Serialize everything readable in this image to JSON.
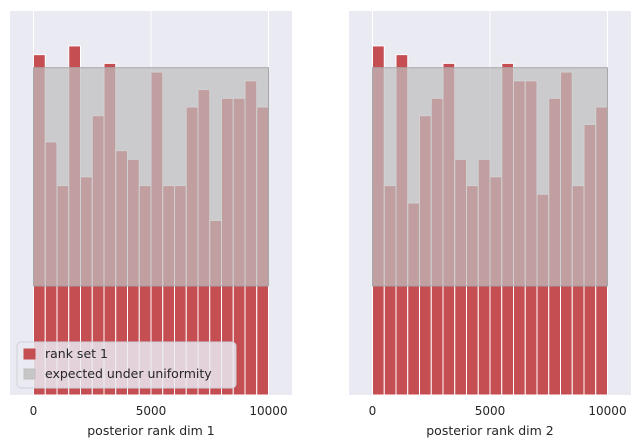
{
  "chart_data": [
    {
      "type": "bar",
      "title": "",
      "xlabel": "posterior rank dim 1",
      "ylabel": "",
      "xlim": [
        -1000,
        11000
      ],
      "ylim": [
        0,
        8.8
      ],
      "xticks": [
        0,
        5000,
        10000
      ],
      "xtick_labels": [
        "0",
        "5000",
        "10000"
      ],
      "bin_width": 500,
      "bin_starts": [
        0,
        500,
        1000,
        1500,
        2000,
        2500,
        3000,
        3500,
        4000,
        4500,
        5000,
        5500,
        6000,
        6500,
        7000,
        7500,
        8000,
        8500,
        9000,
        9500
      ],
      "values": [
        7.8,
        5.8,
        4.8,
        8.0,
        5.0,
        6.4,
        7.6,
        5.6,
        5.4,
        4.8,
        7.4,
        4.8,
        4.8,
        6.6,
        7.0,
        4.0,
        6.8,
        6.8,
        7.2,
        6.6
      ],
      "expected_band": {
        "x": [
          0,
          10000
        ],
        "y": [
          2.5,
          7.5
        ]
      },
      "bar_color": "#c44e52",
      "band_color": "#bfbfbf"
    },
    {
      "type": "bar",
      "title": "",
      "xlabel": "posterior rank dim 2",
      "ylabel": "",
      "xlim": [
        -1000,
        11000
      ],
      "ylim": [
        0,
        8.8
      ],
      "xticks": [
        0,
        5000,
        10000
      ],
      "xtick_labels": [
        "0",
        "5000",
        "10000"
      ],
      "bin_width": 500,
      "bin_starts": [
        0,
        500,
        1000,
        1500,
        2000,
        2500,
        3000,
        3500,
        4000,
        4500,
        5000,
        5500,
        6000,
        6500,
        7000,
        7500,
        8000,
        8500,
        9000,
        9500
      ],
      "values": [
        8.0,
        4.8,
        7.8,
        4.4,
        6.4,
        6.8,
        7.6,
        5.4,
        4.8,
        5.4,
        5.0,
        7.6,
        7.2,
        7.2,
        4.6,
        6.8,
        7.4,
        4.8,
        6.2,
        6.6
      ],
      "expected_band": {
        "x": [
          0,
          10000
        ],
        "y": [
          2.5,
          7.5
        ]
      },
      "bar_color": "#c44e52",
      "band_color": "#bfbfbf"
    }
  ],
  "legend": {
    "position": "lower-left",
    "entries": [
      {
        "label": "rank set 1",
        "color": "#c44e52"
      },
      {
        "label": "expected under uniformity",
        "color": "#bfbfbf"
      }
    ]
  }
}
